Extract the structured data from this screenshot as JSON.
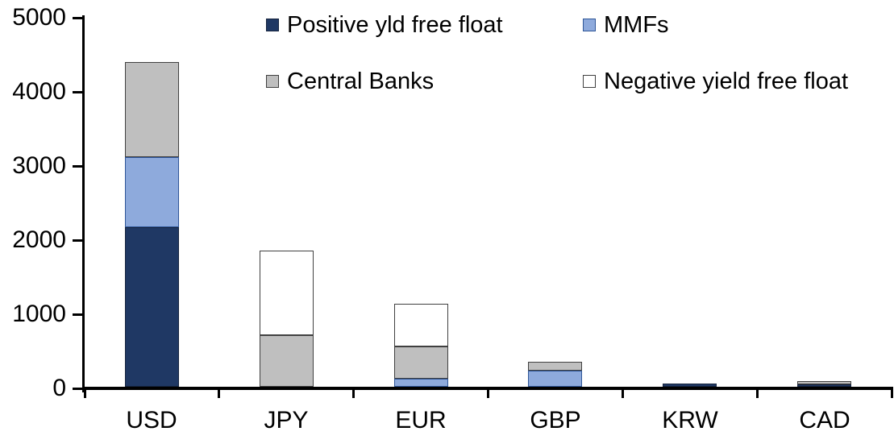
{
  "chart_data": {
    "type": "bar",
    "stacked": true,
    "title": "",
    "xlabel": "",
    "ylabel": "",
    "categories": [
      "USD",
      "JPY",
      "EUR",
      "GBP",
      "KRW",
      "CAD"
    ],
    "series": [
      {
        "name": "Positive yld free float",
        "color": "#1F3864",
        "border_color": "#16243E",
        "values": [
          2150,
          0,
          0,
          0,
          40,
          35
        ]
      },
      {
        "name": "MMFs",
        "color": "#8EAADC",
        "border_color": "#2E5597",
        "values": [
          950,
          0,
          110,
          220,
          0,
          0
        ]
      },
      {
        "name": "Central Banks",
        "color": "#BFBFBF",
        "border_color": "#404040",
        "values": [
          1280,
          700,
          435,
          115,
          0,
          40
        ]
      },
      {
        "name": "Negative yield free float",
        "color": "#FFFFFF",
        "border_color": "#404040",
        "values": [
          0,
          1140,
          575,
          0,
          0,
          0
        ]
      }
    ],
    "totals": [
      4380,
      1840,
      1120,
      335,
      40,
      75
    ],
    "ylim": [
      0,
      5000
    ],
    "ytick_step": 1000,
    "ytick_labels": [
      "0",
      "1000",
      "2000",
      "3000",
      "4000",
      "5000"
    ],
    "grid": "off",
    "legend_position": "top",
    "legend_rows": [
      [
        "Positive yld free float",
        "MMFs"
      ],
      [
        "Central Banks",
        "Negative yield free float"
      ]
    ],
    "axis_color": "#000000",
    "text_color": "#000000"
  }
}
